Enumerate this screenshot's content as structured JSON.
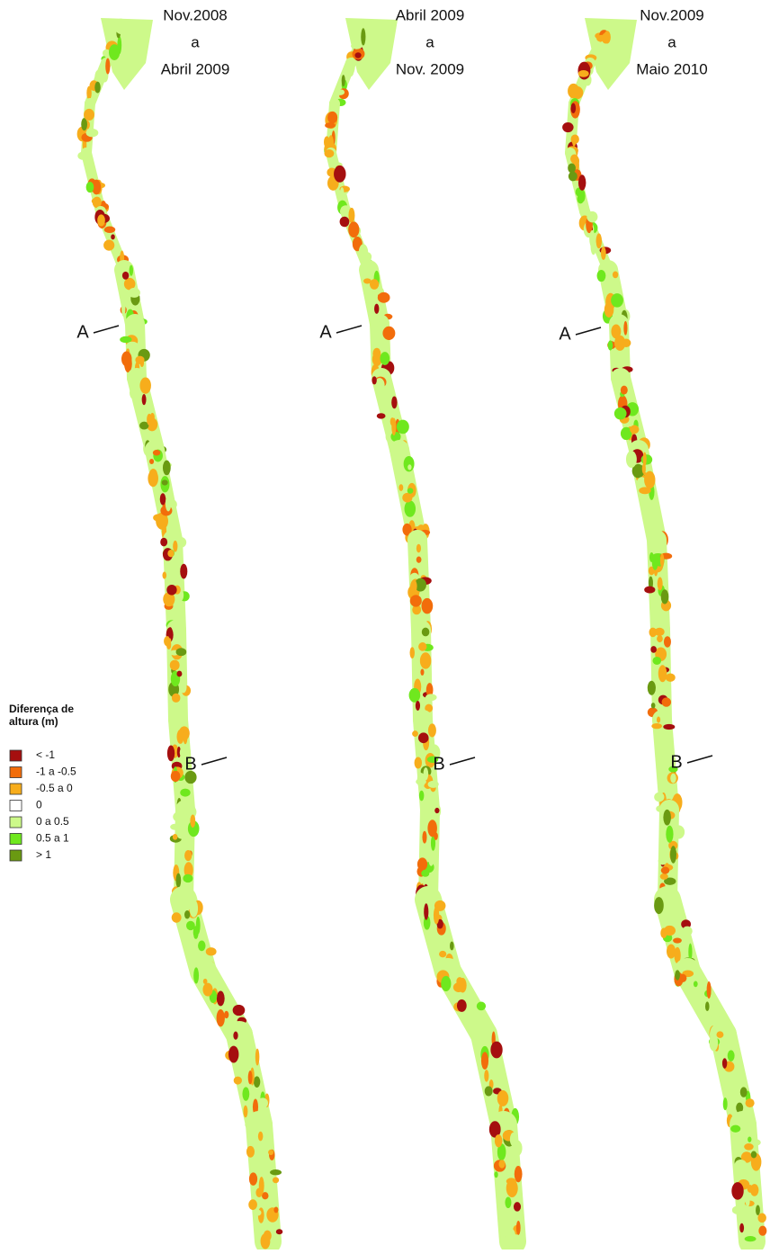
{
  "panels": [
    {
      "title_lines": [
        "Nov.2008",
        "a",
        "Abril 2009"
      ],
      "markers": [
        "A",
        "B"
      ]
    },
    {
      "title_lines": [
        "Abril 2009",
        "a",
        "Nov. 2009"
      ],
      "markers": [
        "A",
        "B"
      ]
    },
    {
      "title_lines": [
        "Nov.2009",
        "a",
        "Maio 2010"
      ],
      "markers": [
        "A",
        "B"
      ]
    }
  ],
  "legend": {
    "title_lines": [
      "Diferença de",
      "altura (m)"
    ],
    "items": [
      {
        "label": "< -1",
        "color": "#a50f0f"
      },
      {
        "label": "-1 a -0.5",
        "color": "#f26d0b"
      },
      {
        "label": "-0.5 a 0",
        "color": "#f7ad1c"
      },
      {
        "label": "0",
        "color": "#ffffff"
      },
      {
        "label": "0 a 0.5",
        "color": "#cdf98a"
      },
      {
        "label": "0.5 a 1",
        "color": "#6fe81e"
      },
      {
        "label": "> 1",
        "color": "#6a9a12"
      }
    ]
  }
}
